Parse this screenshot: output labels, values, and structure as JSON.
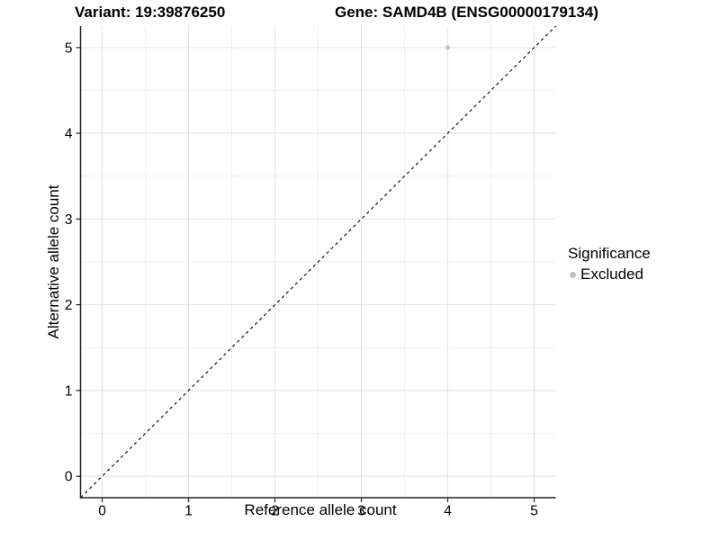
{
  "header": {
    "variant_title": "Variant: 19:39876250",
    "gene_title": "Gene: SAMD4B (ENSG00000179134)"
  },
  "chart_data": {
    "type": "scatter",
    "title_left": "Variant: 19:39876250",
    "title_right": "Gene: SAMD4B (ENSG00000179134)",
    "xlabel": "Reference allele count",
    "ylabel": "Alternative allele count",
    "xlim": [
      -0.25,
      5.25
    ],
    "ylim": [
      -0.25,
      5.25
    ],
    "x_ticks": [
      0,
      1,
      2,
      3,
      4,
      5
    ],
    "y_ticks": [
      0,
      1,
      2,
      3,
      4,
      5
    ],
    "grid": {
      "show": true,
      "minor_step": 0.5,
      "major_step": 1,
      "major_color": "#e3e3e3",
      "minor_color": "#efefef"
    },
    "reference_line": {
      "kind": "identity",
      "slope": 1,
      "intercept": 0,
      "style": "dashed",
      "color": "#000000"
    },
    "series": [
      {
        "name": "Excluded",
        "color": "#bebebe",
        "points": [
          {
            "x": 4,
            "y": 5
          }
        ]
      }
    ],
    "legend": {
      "title": "Significance",
      "position": "right",
      "items": [
        {
          "label": "Excluded",
          "color": "#bebebe"
        }
      ]
    },
    "colors": {
      "background": "#ffffff",
      "axis_line": "#222222",
      "tick": "#222222",
      "tick_label": "#000000"
    }
  }
}
